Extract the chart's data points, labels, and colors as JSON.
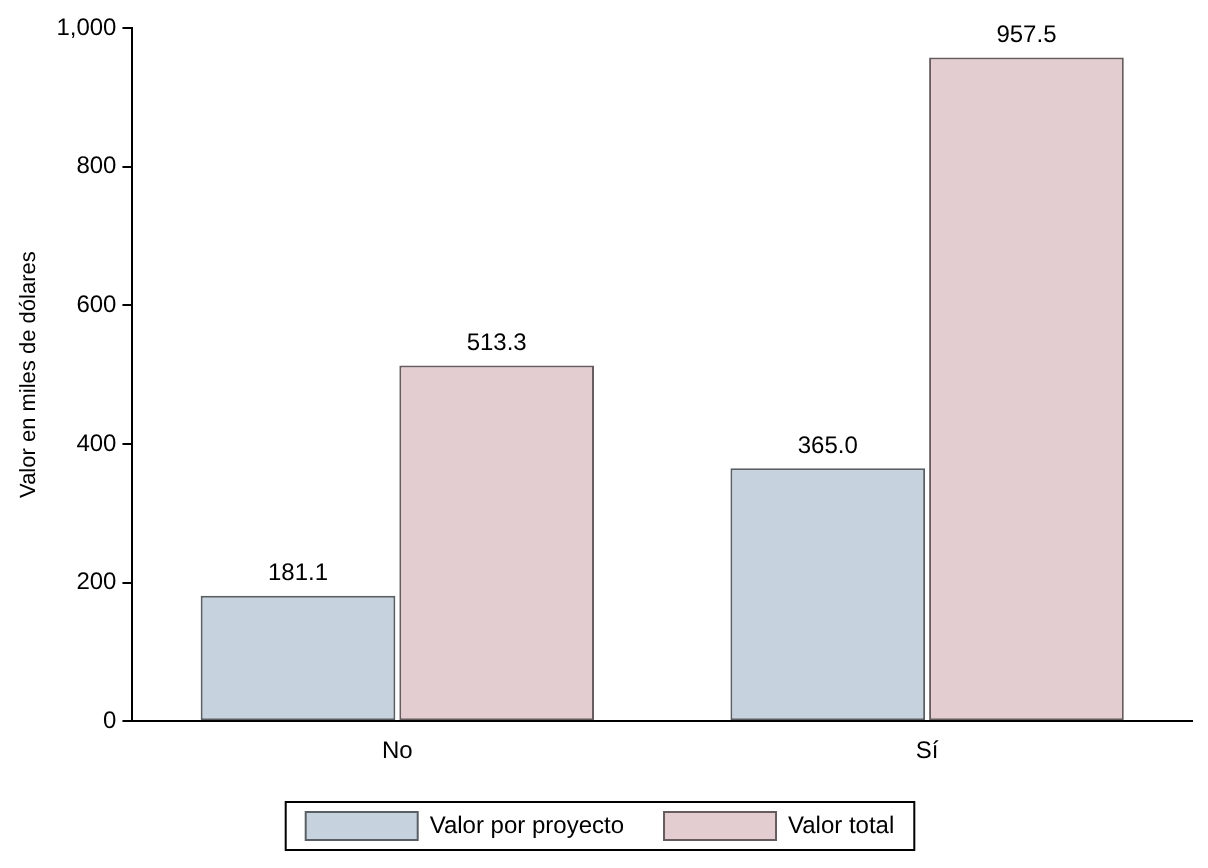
{
  "chart_data": {
    "type": "bar",
    "ylabel": "Valor en miles de dólares",
    "categories": [
      "No",
      "Sí"
    ],
    "series": [
      {
        "name": "Valor por proyecto",
        "color": "#c6d3df",
        "values": [
          181.1,
          365.0
        ],
        "value_labels": [
          "181.1",
          "365.0"
        ]
      },
      {
        "name": "Valor total",
        "color": "#e3cdd0",
        "values": [
          513.3,
          957.5
        ],
        "value_labels": [
          "513.3",
          "957.5"
        ]
      }
    ],
    "ylim": [
      0,
      1000
    ],
    "yticks": [
      0,
      200,
      400,
      600,
      800,
      {
        "value": 1000,
        "label": "1,000"
      }
    ],
    "grid": false,
    "legend": "bottom"
  }
}
